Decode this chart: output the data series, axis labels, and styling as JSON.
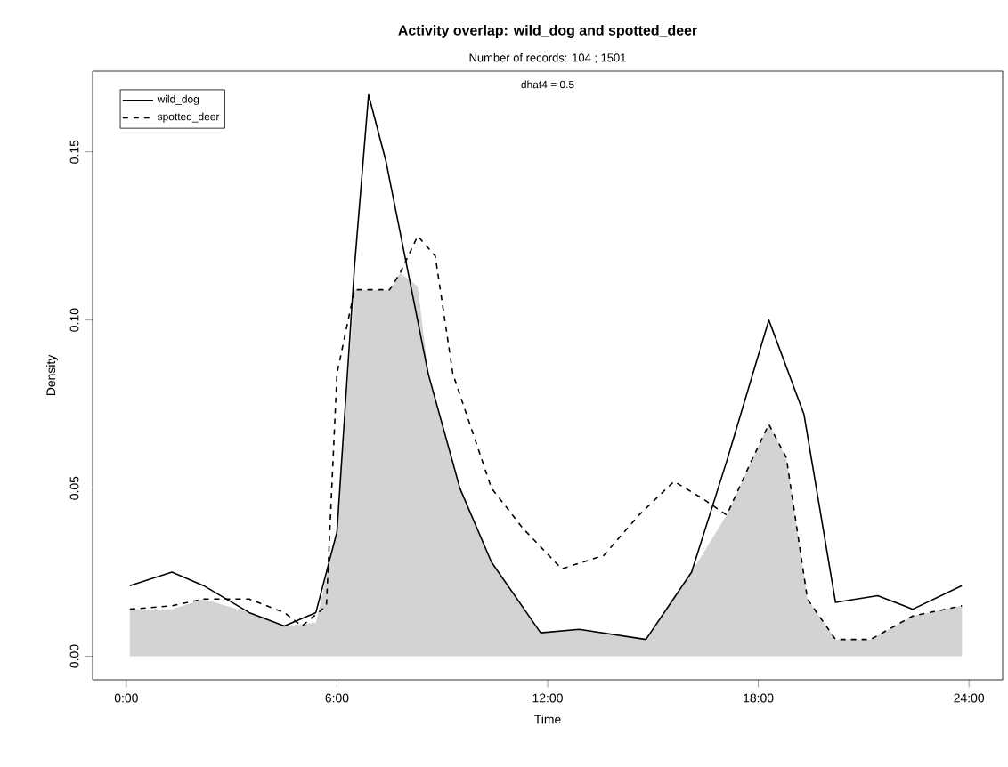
{
  "chart_data": {
    "type": "line",
    "title": "Activity overlap: wild_dog and spotted_deer",
    "subtitle": "Number of records: 104 ; 1501",
    "annotations": [
      "dhat4 = 0.5"
    ],
    "xlabel": "Time",
    "ylabel": "Density",
    "xlim": [
      -0.96,
      24.96
    ],
    "ylim": [
      -0.007,
      0.174
    ],
    "xticks": [
      {
        "value": 0,
        "label": "0:00"
      },
      {
        "value": 6,
        "label": "6:00"
      },
      {
        "value": 12,
        "label": "12:00"
      },
      {
        "value": 18,
        "label": "18:00"
      },
      {
        "value": 24,
        "label": "24:00"
      }
    ],
    "yticks": [
      {
        "value": 0,
        "label": "0.00"
      },
      {
        "value": 0.05,
        "label": "0.05"
      },
      {
        "value": 0.1,
        "label": "0.10"
      },
      {
        "value": 0.15,
        "label": "0.15"
      }
    ],
    "legend": "top left",
    "series": [
      {
        "type": "area",
        "color": "#d3d3d3",
        "x": [
          0.1,
          1.3,
          2.2,
          3.5,
          4.5,
          5.4,
          6.0,
          6.5,
          7.5,
          7.8,
          8.3,
          8.6,
          9.5,
          10.4,
          11.8,
          12.9,
          14.8,
          16.1,
          17.1,
          17.8,
          18.3,
          18.8,
          19.4,
          20.2,
          21.2,
          22.4,
          23.8
        ],
        "values": [
          0.014,
          0.014,
          0.017,
          0.013,
          0.009,
          0.01,
          0.037,
          0.109,
          0.109,
          0.114,
          0.11,
          0.084,
          0.05,
          0.028,
          0.007,
          0.008,
          0.005,
          0.025,
          0.042,
          0.058,
          0.069,
          0.059,
          0.017,
          0.005,
          0.005,
          0.012,
          0.015
        ]
      },
      {
        "name": "wild_dog",
        "color": "#000000",
        "line_style": "solid",
        "x": [
          0.1,
          1.3,
          2.2,
          3.5,
          4.5,
          5.4,
          6.0,
          6.5,
          6.9,
          7.4,
          8.6,
          9.5,
          10.4,
          11.8,
          12.9,
          14.8,
          16.1,
          17.1,
          18.3,
          19.3,
          20.2,
          21.4,
          22.4,
          23.8
        ],
        "values": [
          0.021,
          0.025,
          0.021,
          0.013,
          0.009,
          0.013,
          0.037,
          0.116,
          0.167,
          0.147,
          0.084,
          0.05,
          0.028,
          0.007,
          0.008,
          0.005,
          0.025,
          0.058,
          0.1,
          0.072,
          0.016,
          0.018,
          0.014,
          0.021
        ]
      },
      {
        "name": "spotted_deer",
        "color": "#000000",
        "line_style": "dashed",
        "x": [
          0.1,
          1.3,
          2.2,
          3.5,
          4.5,
          5.0,
          5.7,
          6.0,
          6.5,
          7.5,
          7.8,
          8.3,
          8.8,
          9.3,
          10.4,
          11.3,
          12.4,
          13.6,
          14.6,
          15.6,
          16.4,
          17.1,
          17.8,
          18.3,
          18.8,
          19.4,
          20.2,
          21.2,
          22.4,
          23.8
        ],
        "values": [
          0.014,
          0.015,
          0.017,
          0.017,
          0.013,
          0.009,
          0.015,
          0.084,
          0.109,
          0.109,
          0.114,
          0.125,
          0.119,
          0.084,
          0.05,
          0.038,
          0.026,
          0.03,
          0.042,
          0.052,
          0.047,
          0.042,
          0.058,
          0.069,
          0.059,
          0.017,
          0.005,
          0.005,
          0.012,
          0.015
        ]
      }
    ]
  }
}
